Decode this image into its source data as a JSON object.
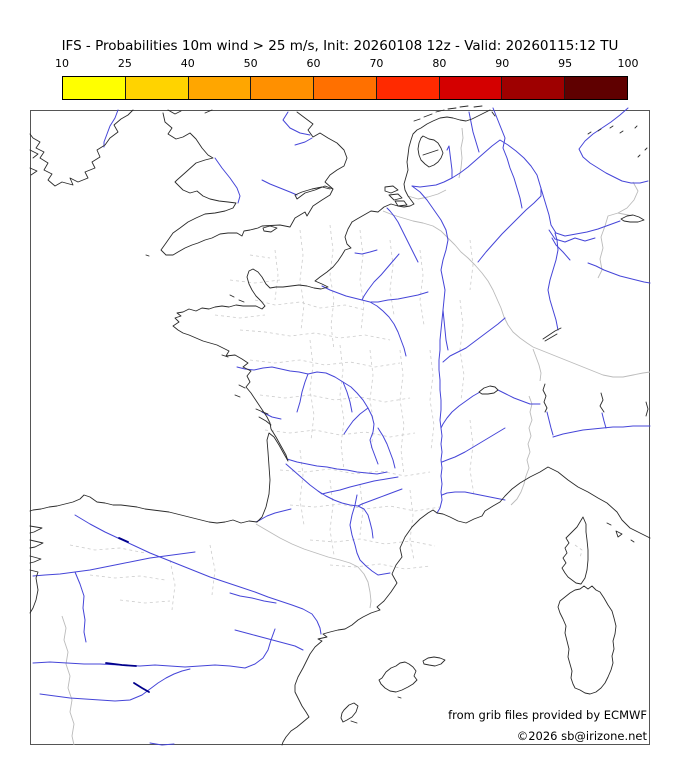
{
  "title": "IFS - Probabilities 10m wind > 25 m/s, Init: 20260108 12z - Valid: 20260115:12 TU",
  "colorbar": {
    "ticks": [
      "10",
      "25",
      "40",
      "50",
      "60",
      "70",
      "80",
      "90",
      "95",
      "100"
    ],
    "colors": [
      "#ffff00",
      "#ffd300",
      "#ffa600",
      "#ff9000",
      "#ff7000",
      "#ff2a00",
      "#d40000",
      "#9e0000",
      "#5f0000"
    ]
  },
  "map": {
    "frame_color": "#555555",
    "coast_color": "#2b2b2b",
    "river_color": "#4545d8",
    "reservoir_color": "#00008b",
    "border_color": "#bbbbbb",
    "department_color": "#cccccc",
    "background": "#ffffff"
  },
  "attribution": {
    "line1": "from grib files provided by ECMWF",
    "line2": "©2026 sb@irizone.net"
  }
}
